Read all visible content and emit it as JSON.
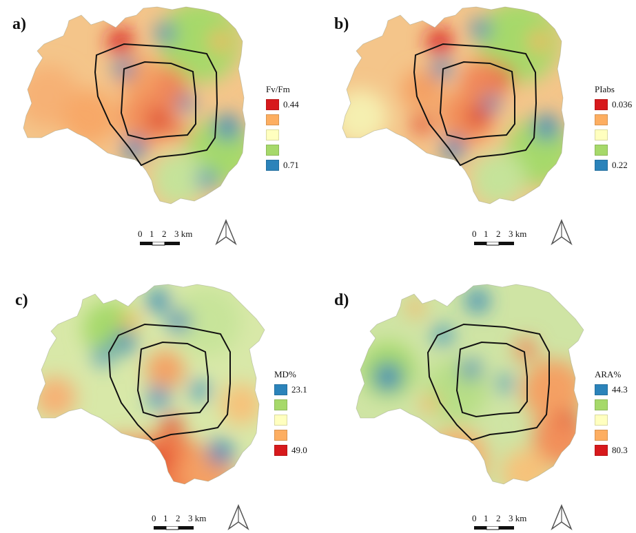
{
  "colors": {
    "red": "#d7191c",
    "orange": "#fdae61",
    "yellow": "#ffffbf",
    "green": "#a6d96a",
    "blue": "#2b83ba",
    "boundary": "#111111"
  },
  "scale_bar": {
    "tick_0": "0",
    "tick_1": "1",
    "tick_2": "2",
    "tick_3": "3 km"
  },
  "panels": [
    {
      "label": "a)",
      "legend_title": "Fv/Fm",
      "legend": [
        {
          "value": "0.44",
          "color": "#d7191c"
        },
        {
          "value": "",
          "color": "#fdae61"
        },
        {
          "value": "",
          "color": "#ffffbf"
        },
        {
          "value": "",
          "color": "#a6d96a"
        },
        {
          "value": "0.71",
          "color": "#2b83ba"
        }
      ]
    },
    {
      "label": "b)",
      "legend_title": "PIabs",
      "legend": [
        {
          "value": "0.036",
          "color": "#d7191c"
        },
        {
          "value": "",
          "color": "#fdae61"
        },
        {
          "value": "",
          "color": "#ffffbf"
        },
        {
          "value": "",
          "color": "#a6d96a"
        },
        {
          "value": "0.22",
          "color": "#2b83ba"
        }
      ]
    },
    {
      "label": "c)",
      "legend_title": "MD%",
      "legend": [
        {
          "value": "23.1",
          "color": "#2b83ba"
        },
        {
          "value": "",
          "color": "#a6d96a"
        },
        {
          "value": "",
          "color": "#ffffbf"
        },
        {
          "value": "",
          "color": "#fdae61"
        },
        {
          "value": "49.0",
          "color": "#d7191c"
        }
      ]
    },
    {
      "label": "d)",
      "legend_title": "ARA%",
      "legend": [
        {
          "value": "44.3",
          "color": "#2b83ba"
        },
        {
          "value": "",
          "color": "#a6d96a"
        },
        {
          "value": "",
          "color": "#ffffbf"
        },
        {
          "value": "",
          "color": "#fdae61"
        },
        {
          "value": "80.3",
          "color": "#d7191c"
        }
      ]
    }
  ]
}
